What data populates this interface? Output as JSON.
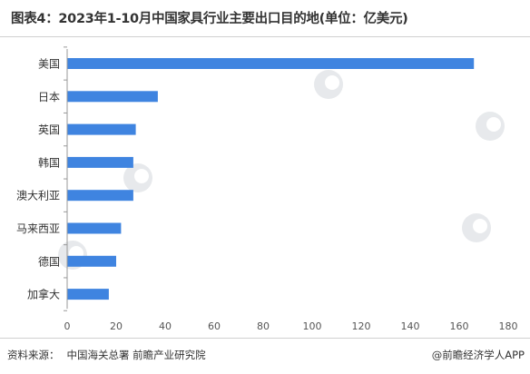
{
  "title": "图表4：2023年1-10月中国家具行业主要出口目的地(单位：亿美元)",
  "source_label": "资料来源：",
  "source_text": "中国海关总署 前瞻产业研究院",
  "credit": "@前瞻经济学人APP",
  "colors": {
    "bar": "#3f84e0",
    "axis_text": "#555555",
    "tick": "#999999"
  },
  "chart_data": {
    "type": "bar",
    "orientation": "horizontal",
    "categories": [
      "美国",
      "日本",
      "英国",
      "韩国",
      "澳大利亚",
      "马来西亚",
      "德国",
      "加拿大"
    ],
    "values": [
      166,
      37,
      28,
      27,
      27,
      22,
      20,
      17
    ],
    "xlim": [
      0,
      180
    ],
    "xticks": [
      0,
      20,
      40,
      60,
      80,
      100,
      120,
      140,
      160,
      180
    ],
    "title": "图表4：2023年1-10月中国家具行业主要出口目的地(单位：亿美元)",
    "xlabel": "",
    "ylabel": "",
    "grid": false
  }
}
